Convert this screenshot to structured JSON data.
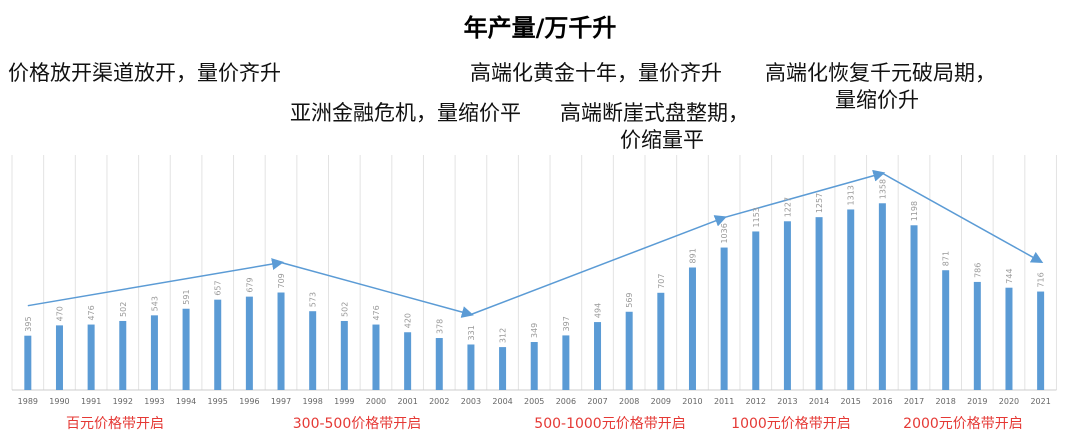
{
  "chart_data": {
    "type": "bar",
    "title": "年产量/万千升",
    "categories": [
      "1989",
      "1990",
      "1991",
      "1992",
      "1993",
      "1994",
      "1995",
      "1996",
      "1997",
      "1998",
      "1999",
      "2000",
      "2001",
      "2002",
      "2003",
      "2004",
      "2005",
      "2006",
      "2007",
      "2008",
      "2009",
      "2010",
      "2011",
      "2012",
      "2013",
      "2014",
      "2015",
      "2016",
      "2017",
      "2018",
      "2019",
      "2020",
      "2021"
    ],
    "values": [
      395,
      470,
      476,
      502,
      543,
      591,
      657,
      679,
      709,
      573,
      502,
      476,
      420,
      378,
      331,
      312,
      349,
      397,
      494,
      569,
      707,
      891,
      1036,
      1153,
      1227,
      1257,
      1313,
      1358,
      1198,
      871,
      786,
      744,
      716
    ],
    "ylim": [
      0,
      1600
    ],
    "grid": "vertical",
    "bar_color": "#5b9bd5",
    "trend_color": "#5b9bd5",
    "annotations": [
      {
        "text": "价格放开渠道放开，量价齐升"
      },
      {
        "text": "亚洲金融危机，量缩价平"
      },
      {
        "text": "高端化黄金十年，量价齐升"
      },
      {
        "text": "高端断崖式盘整期，",
        "text2": "价缩量平"
      },
      {
        "text": "高端化恢复千元破局期，",
        "text2": "量缩价升"
      }
    ],
    "eras": [
      "百元价格带开启",
      "300-500价格带开启",
      "500-1000元价格带开启",
      "1000元价格带开启",
      "2000元价格带开启"
    ],
    "era_color": "#e53935"
  }
}
